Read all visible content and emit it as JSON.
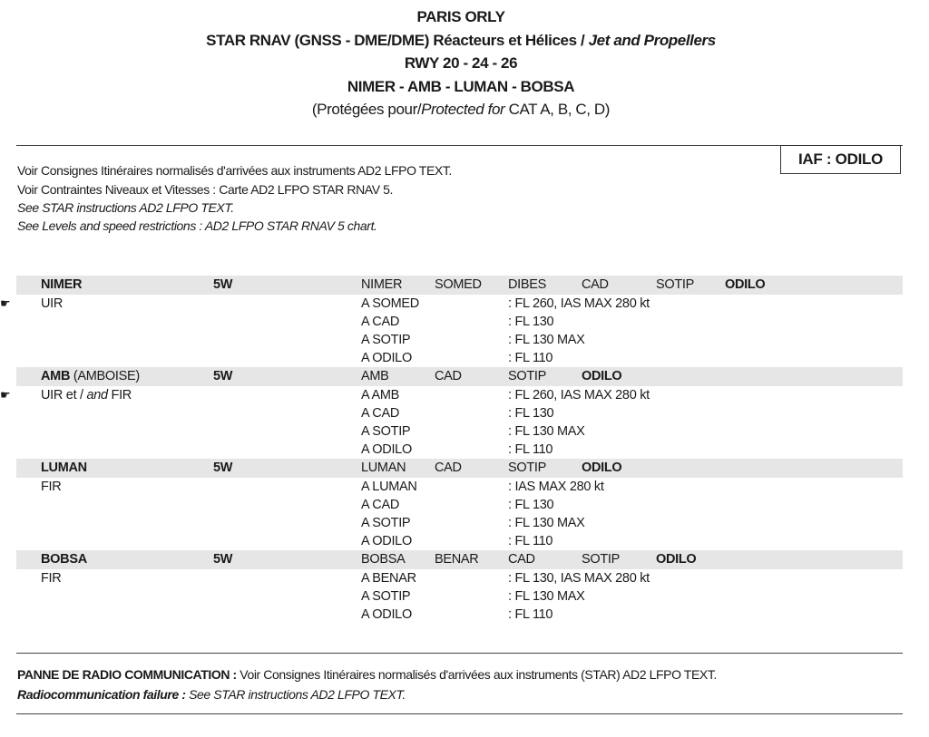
{
  "header": {
    "line1": "PARIS ORLY",
    "line2a": "STAR RNAV (GNSS - DME/DME) Réacteurs et Hélices / ",
    "line2b": "Jet and Propellers",
    "line3": "RWY 20 - 24 - 26",
    "line4": "NIMER - AMB - LUMAN - BOBSA",
    "line5a": "(Protégées pour/",
    "line5b": "Protected for",
    "line5c": " CAT A, B, C, D)"
  },
  "iaf": "IAF : ODILO",
  "notes": [
    "Voir Consignes Itinéraires normalisés d'arrivées aux instruments AD2 LFPO TEXT.",
    "Voir Contraintes Niveaux et Vitesses  : Carte AD2 LFPO STAR RNAV 5.",
    "See STAR instructions AD2 LFPO TEXT.",
    "See Levels and speed restrictions : AD2 LFPO STAR RNAV 5 chart."
  ],
  "routes": [
    {
      "name": "NIMER",
      "name_suffix": "",
      "code": "5W",
      "region": [
        "UIR"
      ],
      "flag": true,
      "waypoints": [
        "NIMER",
        "SOMED",
        "DIBES",
        "CAD",
        "SOTIP",
        "ODILO"
      ],
      "lines": [
        [
          "A SOMED",
          ": FL 260, IAS MAX 280 kt"
        ],
        [
          "A CAD",
          ": FL 130"
        ],
        [
          "A SOTIP",
          ": FL 130 MAX"
        ],
        [
          "A ODILO",
          ": FL 110"
        ]
      ]
    },
    {
      "name": "AMB",
      "name_suffix": " (AMBOISE)",
      "code": "5W",
      "region": [
        "UIR et / ",
        "and",
        " FIR"
      ],
      "flag": true,
      "waypoints": [
        "AMB",
        "CAD",
        "SOTIP",
        "ODILO"
      ],
      "lines": [
        [
          "A AMB",
          ": FL 260, IAS MAX 280 kt"
        ],
        [
          "A CAD",
          ": FL 130"
        ],
        [
          "A SOTIP",
          ": FL 130 MAX"
        ],
        [
          "A ODILO",
          ": FL 110"
        ]
      ]
    },
    {
      "name": "LUMAN",
      "name_suffix": "",
      "code": "5W",
      "region": [
        "FIR"
      ],
      "flag": false,
      "waypoints": [
        "LUMAN",
        "CAD",
        "SOTIP",
        "ODILO"
      ],
      "lines": [
        [
          "A LUMAN",
          ": IAS MAX 280 kt"
        ],
        [
          "A CAD",
          ": FL 130"
        ],
        [
          "A SOTIP",
          ": FL 130 MAX"
        ],
        [
          "A ODILO",
          ": FL 110"
        ]
      ]
    },
    {
      "name": "BOBSA",
      "name_suffix": "",
      "code": "5W",
      "region": [
        "FIR"
      ],
      "flag": false,
      "waypoints": [
        "BOBSA",
        "BENAR",
        "CAD",
        "SOTIP",
        "ODILO"
      ],
      "lines": [
        [
          "A BENAR",
          ": FL 130, IAS MAX 280 kt"
        ],
        [
          "A SOTIP",
          ": FL 130 MAX"
        ],
        [
          "A ODILO",
          ": FL 110"
        ]
      ]
    }
  ],
  "footer": {
    "fr_bold": "PANNE DE RADIO COMMUNICATION : ",
    "fr_text": "Voir Consignes Itinéraires normalisés d'arrivées aux instruments (STAR) AD2 LFPO TEXT.",
    "en_bold": "Radiocommunication failure : ",
    "en_text": "See STAR instructions AD2 LFPO TEXT."
  },
  "icons": {
    "flag": "pointing-hand-icon"
  }
}
